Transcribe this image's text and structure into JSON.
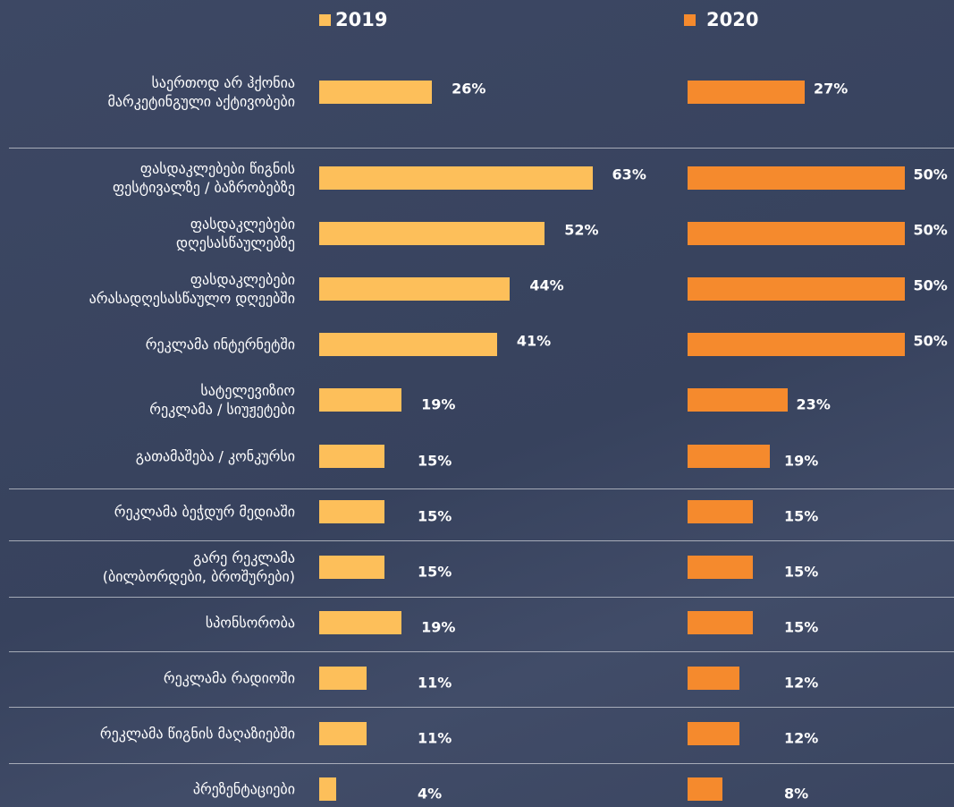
{
  "chart_data": {
    "type": "bar",
    "categories": [
      "საერთოდ არ ჰქონია\nმარკეტინგული აქტივობები",
      "ფასდაკლებები წიგნის\nფესტივალზე / ბაზრობებზე",
      "ფასდაკლებები\nდღესასწაულებზე",
      "ფასდაკლებები\nარასადღესასწაულო დღეებში",
      "რეკლამა ინტერნეტში",
      "სატელევიზიო\nრეკლამა / სიუჟეტები",
      "გათამაშება / კონკურსი",
      "რეკლამა ბეჭდურ მედიაში",
      "გარე რეკლამა\n(ბილბორდები, ბროშურები)",
      "სპონსორობა",
      "რეკლამა რადიოში",
      "რეკლამა წიგნის მაღაზიებში",
      "პრეზენტაციები"
    ],
    "series": [
      {
        "name": "2019",
        "color": "#fdbf5a",
        "values": [
          26,
          63,
          52,
          44,
          41,
          19,
          15,
          15,
          15,
          19,
          11,
          11,
          4
        ],
        "value_labels": [
          "26%",
          "63%",
          "52%",
          "44%",
          "41%",
          "19%",
          "15%",
          "15%",
          "15%",
          "19%",
          "11%",
          "11%",
          "4%"
        ]
      },
      {
        "name": "2020",
        "color": "#f58a2d",
        "values": [
          27,
          50,
          50,
          50,
          50,
          23,
          19,
          15,
          15,
          15,
          12,
          12,
          8
        ],
        "value_labels": [
          "27%",
          "50%",
          "50%",
          "50%",
          "50%",
          "23%",
          "19%",
          "15%",
          "15%",
          "15%",
          "12%",
          "12%",
          "8%"
        ]
      }
    ]
  }
}
